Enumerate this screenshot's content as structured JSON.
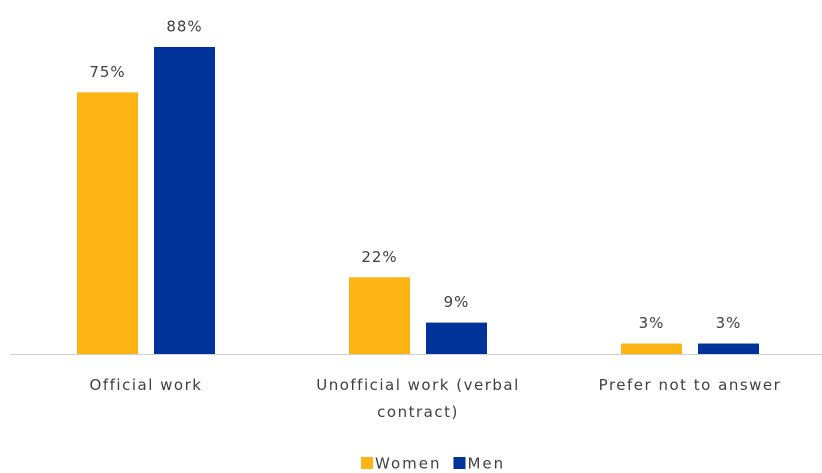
{
  "chart_data": {
    "type": "bar",
    "categories": [
      "Official work",
      "Unofficial work (verbal contract)",
      "Prefer not to answer"
    ],
    "series": [
      {
        "name": "Women",
        "color": "#fdb515",
        "values": [
          75,
          22,
          3
        ],
        "value_labels": [
          "75%",
          "22%",
          "3%"
        ]
      },
      {
        "name": "Men",
        "color": "#00339a",
        "values": [
          88,
          9,
          3
        ],
        "value_labels": [
          "88%",
          "9%",
          "3%"
        ]
      }
    ],
    "legend": "bottom"
  }
}
